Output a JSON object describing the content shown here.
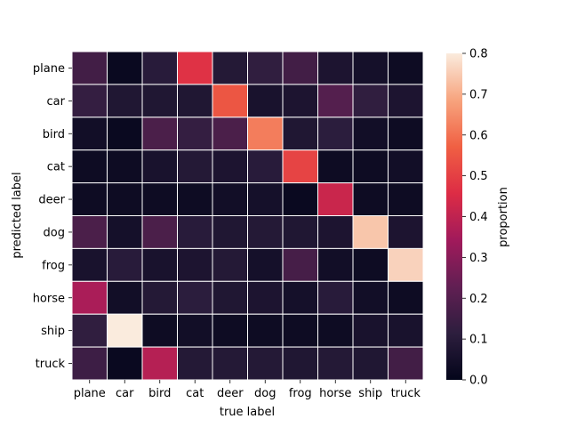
{
  "chart_data": {
    "type": "heatmap",
    "title": "",
    "xlabel": "true label",
    "ylabel": "predicted label",
    "x_categories": [
      "plane",
      "car",
      "bird",
      "cat",
      "deer",
      "dog",
      "frog",
      "horse",
      "ship",
      "truck"
    ],
    "y_categories": [
      "plane",
      "car",
      "bird",
      "cat",
      "deer",
      "dog",
      "frog",
      "horse",
      "ship",
      "truck"
    ],
    "values": [
      [
        0.16,
        0.02,
        0.1,
        0.47,
        0.09,
        0.12,
        0.16,
        0.07,
        0.05,
        0.03
      ],
      [
        0.13,
        0.08,
        0.08,
        0.08,
        0.55,
        0.06,
        0.07,
        0.2,
        0.12,
        0.07
      ],
      [
        0.04,
        0.02,
        0.18,
        0.13,
        0.18,
        0.62,
        0.08,
        0.11,
        0.04,
        0.03
      ],
      [
        0.03,
        0.03,
        0.06,
        0.09,
        0.07,
        0.1,
        0.51,
        0.03,
        0.03,
        0.04
      ],
      [
        0.03,
        0.03,
        0.03,
        0.03,
        0.04,
        0.05,
        0.02,
        0.42,
        0.03,
        0.03
      ],
      [
        0.18,
        0.05,
        0.18,
        0.1,
        0.08,
        0.09,
        0.08,
        0.07,
        0.74,
        0.07
      ],
      [
        0.06,
        0.1,
        0.06,
        0.07,
        0.09,
        0.05,
        0.17,
        0.04,
        0.03,
        0.76
      ],
      [
        0.36,
        0.04,
        0.09,
        0.11,
        0.08,
        0.07,
        0.05,
        0.1,
        0.04,
        0.03
      ],
      [
        0.12,
        0.8,
        0.03,
        0.04,
        0.03,
        0.03,
        0.03,
        0.03,
        0.06,
        0.06
      ],
      [
        0.15,
        0.02,
        0.38,
        0.09,
        0.09,
        0.09,
        0.08,
        0.09,
        0.08,
        0.16
      ]
    ],
    "colorbar": {
      "label": "proportion",
      "range": [
        0.0,
        0.8
      ],
      "ticks": [
        "0.0",
        "0.1",
        "0.2",
        "0.3",
        "0.4",
        "0.5",
        "0.6",
        "0.7",
        "0.8"
      ]
    },
    "colormap": [
      "#03051a",
      "#2d1e3e",
      "#611f53",
      "#a11a5b",
      "#dd2c45",
      "#f06043",
      "#f7a47e",
      "#faebdd"
    ]
  }
}
